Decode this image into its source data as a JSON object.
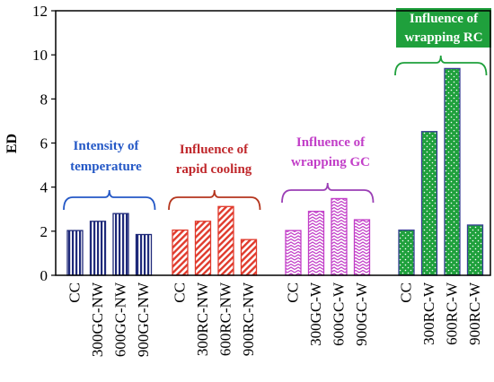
{
  "chart_data": {
    "type": "bar",
    "ylabel": "ED",
    "ylim": [
      0,
      12
    ],
    "yticks": [
      0,
      2,
      4,
      6,
      8,
      10,
      12
    ],
    "grid": false,
    "groups": [
      {
        "label": "Intensity of temperature",
        "label_lines": [
          "Intensity of",
          "temperature"
        ],
        "color": "#1f2a7a",
        "label_color": "#2458c6",
        "bracket_color": "#2458c6",
        "pattern": "vertical-stripes",
        "categories": [
          "CC",
          "300GC-NW",
          "600GC-NW",
          "900GC-NW"
        ],
        "values": [
          2.03,
          2.45,
          2.8,
          1.85
        ]
      },
      {
        "label": "Influence of rapid cooling",
        "label_lines": [
          "Influence of",
          "rapid cooling"
        ],
        "color": "#e03a2c",
        "label_color": "#c0282c",
        "bracket_color": "#b5361e",
        "pattern": "diagonal-stripes",
        "categories": [
          "CC",
          "300RC-NW",
          "600RC-NW",
          "900RC-NW"
        ],
        "values": [
          2.05,
          2.45,
          3.12,
          1.62
        ]
      },
      {
        "label": "Influence of wrapping GC",
        "label_lines": [
          "Influence of",
          "wrapping GC"
        ],
        "color": "#c23fc8",
        "label_color": "#c23fc8",
        "bracket_color": "#9b3fb5",
        "pattern": "zigzag",
        "categories": [
          "CC",
          "300GC-W",
          "600GC-W",
          "900GC-W"
        ],
        "values": [
          2.03,
          2.9,
          3.48,
          2.52
        ]
      },
      {
        "label": "Influence of wrapping RC",
        "label_lines": [
          "Influence of",
          "wrapping RC"
        ],
        "color": "#1fa03c",
        "label_color": "#ffffff",
        "label_bg": "#1fa03c",
        "bracket_color": "#1fa03c",
        "pattern": "dotted",
        "categories": [
          "CC",
          "300RC-W",
          "600RC-W",
          "900RC-W"
        ],
        "values": [
          2.05,
          6.52,
          9.38,
          2.28
        ]
      }
    ]
  }
}
